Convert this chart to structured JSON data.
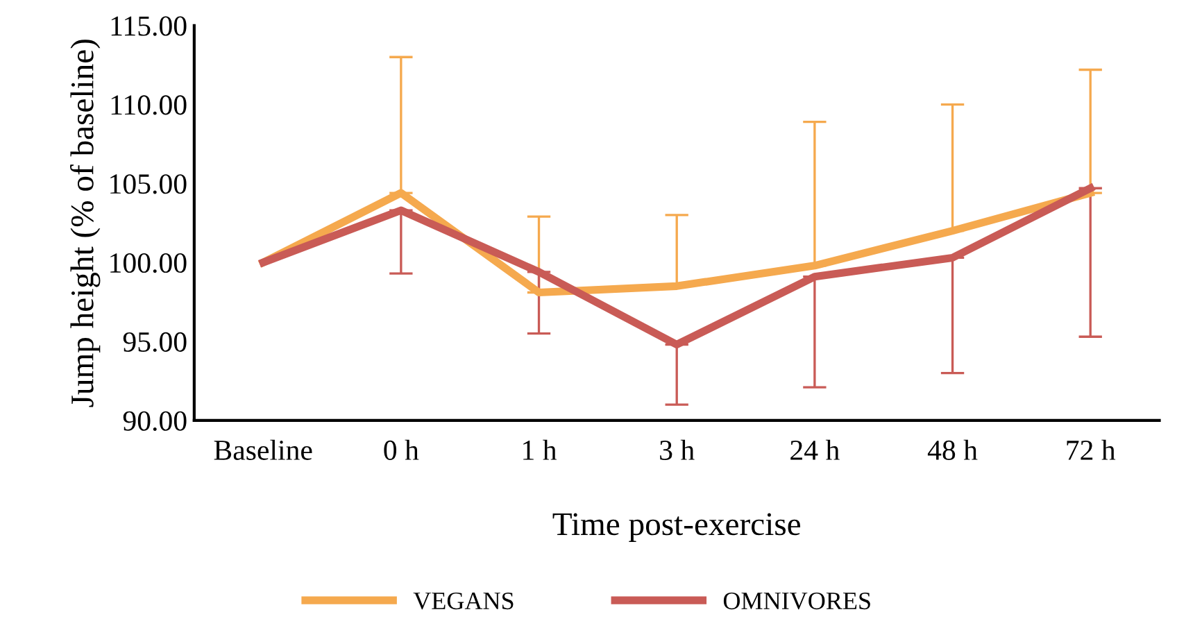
{
  "chart_data": {
    "type": "line",
    "xlabel": "Time post-exercise",
    "ylabel": "Jump height (% of baseline)",
    "categories": [
      "Baseline",
      "0 h",
      "1 h",
      "3 h",
      "24 h",
      "48 h",
      "72 h"
    ],
    "series": [
      {
        "name": "VEGANS",
        "color": "#f5a94e",
        "values": [
          100,
          104.4,
          98.1,
          98.5,
          99.8,
          102.0,
          104.4
        ],
        "errors": [
          null,
          [
            104.4,
            113.0
          ],
          [
            98.1,
            102.9
          ],
          [
            98.5,
            103.0
          ],
          [
            99.8,
            108.9
          ],
          [
            102.0,
            110.0
          ],
          [
            104.4,
            112.2
          ]
        ]
      },
      {
        "name": "OMNIVORES",
        "color": "#c95b56",
        "values": [
          100,
          103.3,
          99.4,
          94.8,
          99.1,
          100.3,
          104.7
        ],
        "errors": [
          null,
          [
            99.3,
            103.3
          ],
          [
            95.5,
            99.4
          ],
          [
            91.0,
            94.8
          ],
          [
            92.1,
            99.1
          ],
          [
            93.0,
            100.3
          ],
          [
            95.3,
            104.7
          ]
        ]
      }
    ],
    "ylim": [
      90,
      115
    ],
    "yticks": [
      {
        "value": 90,
        "label": "90.00"
      },
      {
        "value": 95,
        "label": "95.00"
      },
      {
        "value": 100,
        "label": "100.00"
      },
      {
        "value": 105,
        "label": "105.00"
      },
      {
        "value": 110,
        "label": "110.00"
      },
      {
        "value": 115,
        "label": "115.00"
      }
    ],
    "grid": false,
    "legend": "bottom",
    "marker": "none",
    "line_style": "solid"
  }
}
